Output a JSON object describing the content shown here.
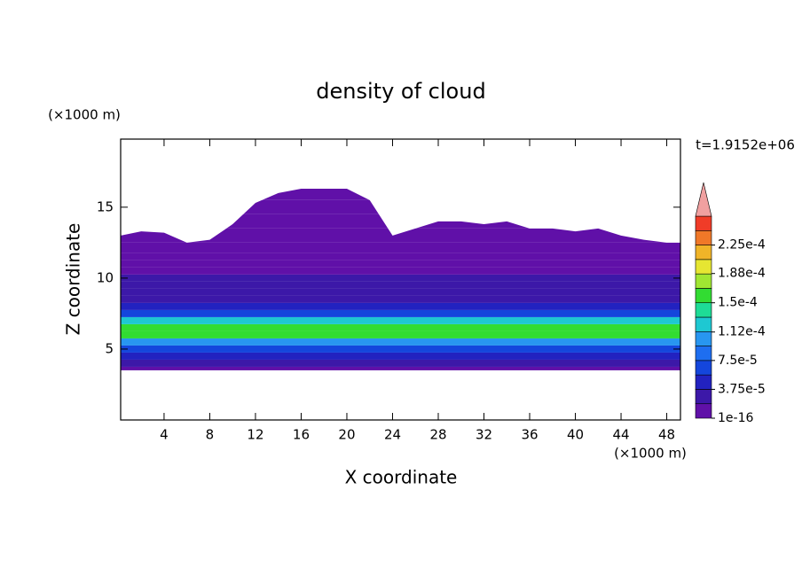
{
  "chart_data": {
    "type": "contour",
    "title": "density of cloud",
    "xlabel": "X coordinate",
    "ylabel": "Z coordinate",
    "axis_unit": "(×1000 m)",
    "annotation": "t=1.9152e+06",
    "xlim": [
      0.2,
      49.2
    ],
    "ylim": [
      0,
      19.8
    ],
    "xticks": [
      4,
      8,
      12,
      16,
      20,
      24,
      28,
      32,
      36,
      40,
      44,
      48
    ],
    "yticks": [
      5,
      10,
      15
    ],
    "z": [
      3.5,
      4,
      4.5,
      5,
      5.5,
      6,
      6.5,
      7,
      7.5,
      8,
      8.5,
      9,
      9.5,
      10,
      10.5,
      11,
      11.5,
      12,
      13,
      14,
      15,
      16
    ],
    "values": [
      1e-05,
      2.5e-05,
      4.5e-05,
      7e-05,
      0.0001,
      0.00015,
      0.00016,
      0.00012,
      7e-05,
      4.5e-05,
      3.5e-05,
      3e-05,
      2.5e-05,
      2e-05,
      1.8e-05,
      1.2e-05,
      1e-05,
      8e-06,
      5e-06,
      3e-06,
      2e-06,
      1e-06
    ],
    "cloud_top_x": [
      0.2,
      2,
      4,
      6,
      8,
      10,
      12,
      14,
      16,
      18,
      20,
      22,
      24,
      26,
      28,
      30,
      32,
      34,
      36,
      38,
      40,
      42,
      44,
      46,
      48,
      49.2
    ],
    "cloud_top": [
      13,
      13.3,
      13.2,
      12.5,
      12.7,
      13.8,
      15.3,
      16,
      16.3,
      16.3,
      16.3,
      15.5,
      13,
      13.5,
      14,
      14,
      13.8,
      14,
      13.5,
      13.5,
      13.3,
      13.5,
      13,
      12.7,
      12.5,
      12.5
    ],
    "cloud_base": 3.5,
    "colorbar": {
      "lim": [
        0,
        0.0002625
      ],
      "colors": [
        "#6010a8",
        "#3c18a8",
        "#2222c0",
        "#1446dc",
        "#1e6ef0",
        "#2896f0",
        "#1ec8d2",
        "#1edc96",
        "#32dc32",
        "#a0e632",
        "#e6e632",
        "#f0b428",
        "#f07828",
        "#f03c28",
        "#f0a0a0"
      ],
      "ticks": [
        1e-16,
        {
          "value": 3.75e-05,
          "label": "3.75e-5"
        },
        {
          "value": 7.5e-05,
          "label": "7.5e-5"
        },
        {
          "value": 0.000112,
          "label": "1.12e-4"
        },
        {
          "value": 0.00015,
          "label": "1.5e-4"
        },
        {
          "value": 0.000188,
          "label": "1.88e-4"
        },
        {
          "value": 0.000225,
          "label": "2.25e-4"
        }
      ]
    }
  }
}
